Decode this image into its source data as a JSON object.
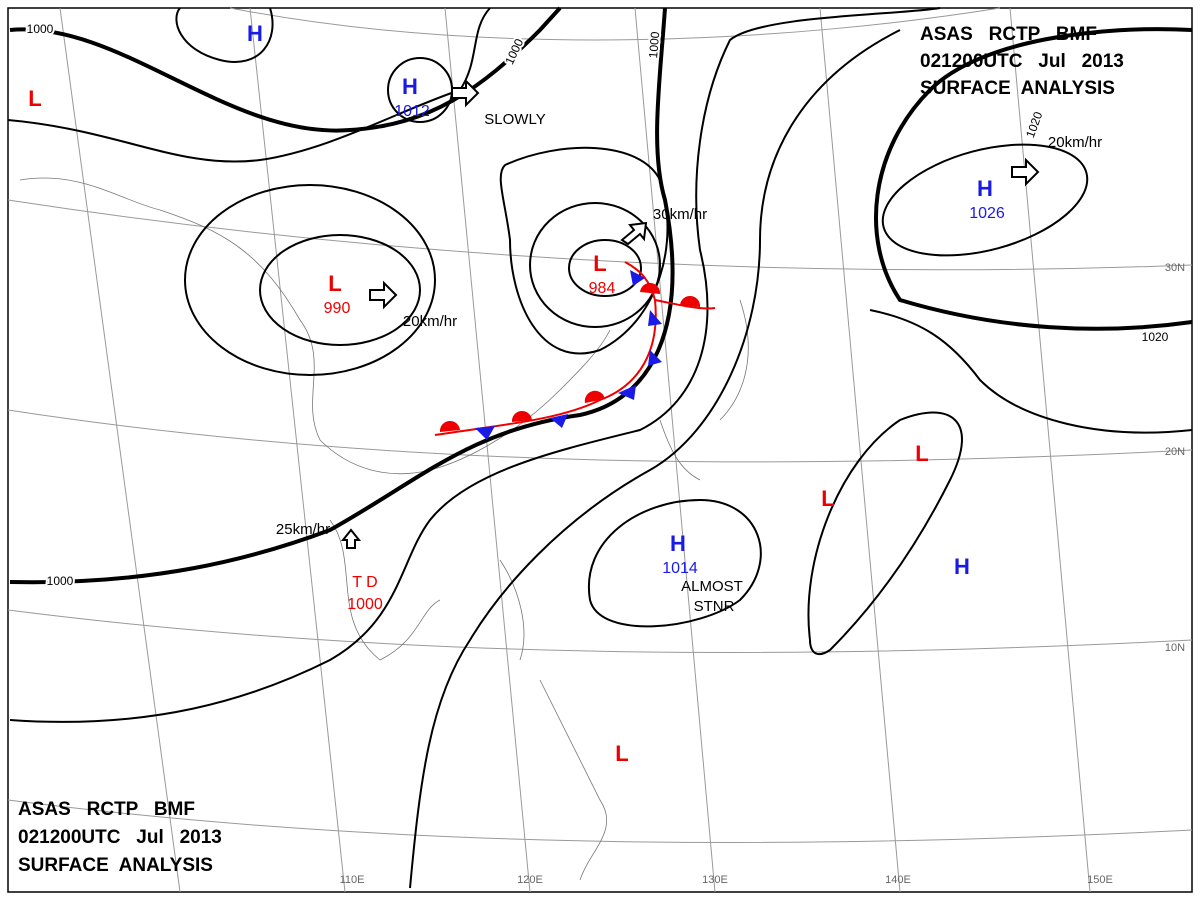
{
  "header_top": [
    "ASAS   RCTP   BMF",
    "021200UTC   Jul   2013",
    "SURFACE  ANALYSIS"
  ],
  "header_bottom": [
    "ASAS   RCTP   BMF",
    "021200UTC   Jul   2013",
    "SURFACE  ANALYSIS"
  ],
  "centers": [
    {
      "type": "H"
    },
    {
      "type": "L"
    },
    {
      "type": "H",
      "value": "1012"
    },
    {
      "type": "L",
      "value": "990"
    },
    {
      "type": "L",
      "value": "984"
    },
    {
      "type": "H",
      "value": "1026"
    },
    {
      "type": "H",
      "value": "1014"
    },
    {
      "type": "L"
    },
    {
      "type": "L"
    },
    {
      "type": "H"
    },
    {
      "type": "L"
    }
  ],
  "tropical_depression": {
    "label": "T D",
    "value": "1000"
  },
  "isobar_labels": [
    "1000",
    "1000",
    "1000",
    "1000",
    "1020",
    "1020"
  ],
  "motions": [
    "SLOWLY",
    "20km/hr",
    "30km/hr",
    "20km/hr",
    "25km/hr",
    "ALMOST",
    "STNR"
  ],
  "lon_labels": [
    "110E",
    "120E",
    "130E",
    "140E",
    "150E"
  ],
  "lat_labels": [
    "30N",
    "20N",
    "10N"
  ]
}
